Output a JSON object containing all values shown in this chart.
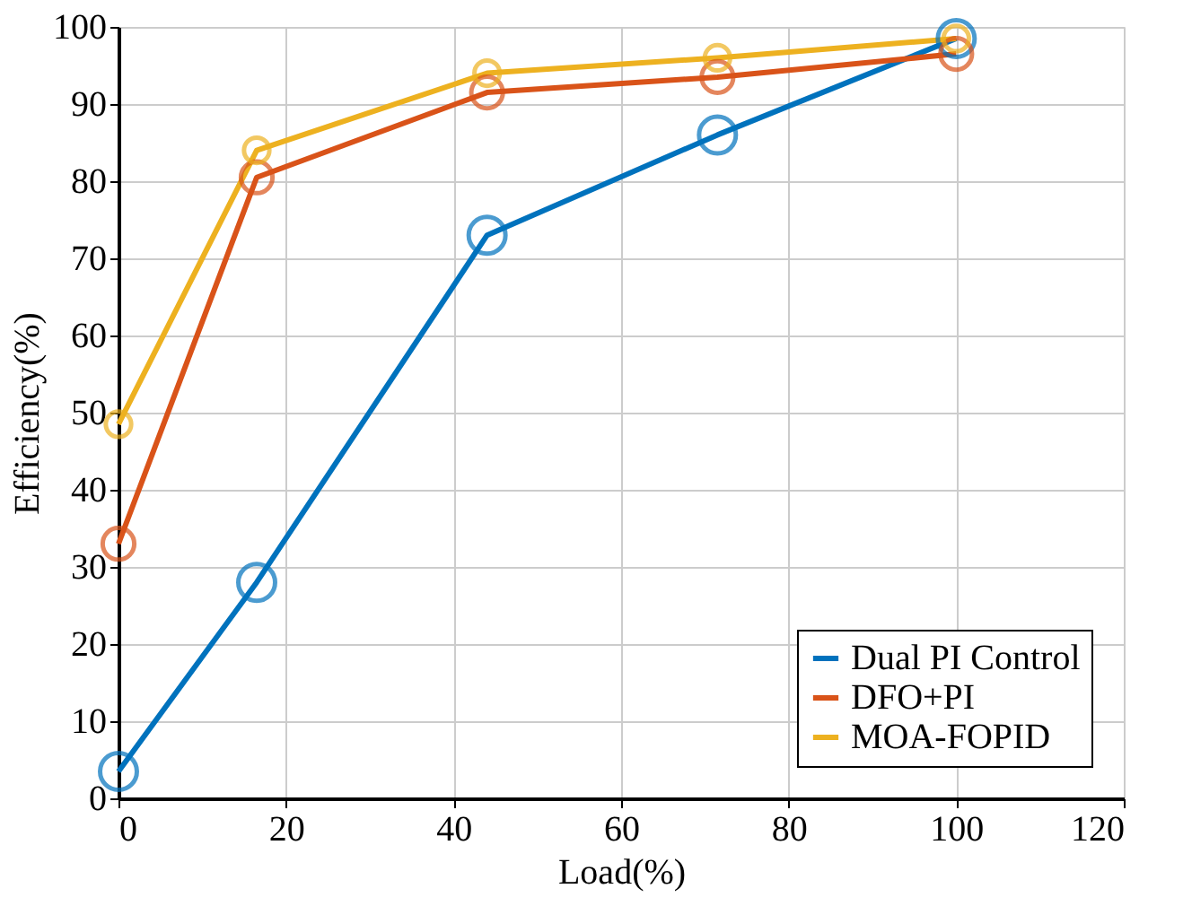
{
  "chart_data": {
    "type": "line",
    "xlabel": "Load(%)",
    "ylabel": "Efficiency(%)",
    "x": [
      0,
      16.5,
      44,
      71.5,
      100
    ],
    "series": [
      {
        "name": "Dual PI Control",
        "color": "#0072bd",
        "values": [
          3.5,
          28,
          73,
          86,
          98.5
        ]
      },
      {
        "name": "DFO+PI",
        "color": "#d95319",
        "values": [
          33,
          80.5,
          91.5,
          93.5,
          96.5
        ]
      },
      {
        "name": "MOA-FOPID",
        "color": "#edb120",
        "values": [
          48.5,
          84,
          94,
          96,
          98.5
        ]
      }
    ],
    "xlim": [
      0,
      120
    ],
    "xticks": [
      0,
      20,
      40,
      60,
      80,
      100,
      120
    ],
    "ylim": [
      0,
      100
    ],
    "yticks": [
      0,
      10,
      20,
      30,
      40,
      50,
      60,
      70,
      80,
      90,
      100
    ],
    "grid": true,
    "legend": "bottom right",
    "marker": "circle",
    "line_style": "solid"
  }
}
